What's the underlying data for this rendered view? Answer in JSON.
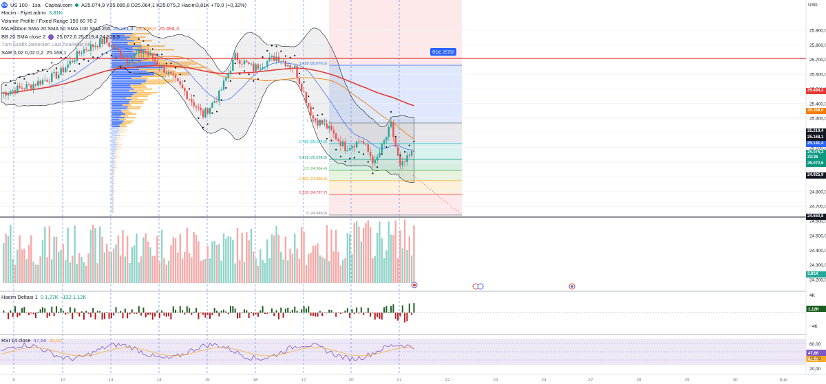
{
  "header": {
    "symbol_icon": "us-flag-icon",
    "title": "US 100 · 1sa · Capital.com",
    "ohlc": "A25.074,9 Y25.085,8 D25.064,1 K25.075,2 Hacim3,81K +79,0 (+0,32%)",
    "volume_label": "Hacim · Fiyat adımı",
    "volume_value": "3,81K",
    "vpfr_label": "Volume Profile / Fixed Range 150 60 70 2",
    "ma_label": "MA Ribbon SMA 20 SMA 50 SMA 100 SMA 200",
    "ma_values": [
      "25.141,4",
      "25.358,0",
      "25.494,3"
    ],
    "bb_label": "BB 20 SMA close 2",
    "bb_values": "25.072,6 25.219,4 24.925,9",
    "hidden_label": "Tüm Grafik Desenleri Last Available 68",
    "sar_label": "SAR 0,02 0,02 0,2",
    "sar_value": "25.168,1"
  },
  "price_axis": {
    "currency": "USD",
    "ticks": [
      "25.900,0",
      "25.800,0",
      "25.700,0",
      "25.600,0",
      "25.500,0",
      "25.400,0",
      "25.300,0",
      "25.200,0",
      "25.100,0",
      "25.000,0",
      "24.900,0",
      "24.800,0",
      "24.700,0",
      "24.600,0",
      "24.500,0",
      "24.400,0",
      "24.300,0",
      "24.200,0"
    ],
    "labels": [
      {
        "text": "25.494,3",
        "color": "#e53935"
      },
      {
        "text": "25.358,0",
        "color": "#f57c00"
      },
      {
        "text": "25.219,4",
        "color": "#131722"
      },
      {
        "text": "25.168,1",
        "color": "#131722"
      },
      {
        "text": "25.141,4",
        "color": "#2962ff"
      },
      {
        "text": "25.075,2",
        "color": "#089981"
      },
      {
        "text": "23:36",
        "color": "#089981"
      },
      {
        "text": "25.072,6",
        "color": "#089981"
      },
      {
        "text": "24.925,9",
        "color": "#131722"
      },
      {
        "text": "24.650,8",
        "color": "#131722"
      },
      {
        "text": "3,81K",
        "color": "#26a69a"
      }
    ]
  },
  "fib": {
    "levels": [
      {
        "ratio": "1,618 (25.670,0)",
        "color": "#2962ff"
      },
      {
        "ratio": "1 (25.280,0)",
        "color": "#787b86"
      },
      {
        "ratio": "0,786 (25.144,9)",
        "color": "#00bcd4"
      },
      {
        "ratio": "0,618 (25.038,8)",
        "color": "#089981"
      },
      {
        "ratio": "0,5 (24.964,4)",
        "color": "#4caf50"
      },
      {
        "ratio": "0,382 (24.889,9)",
        "color": "#ff9800"
      },
      {
        "ratio": "0,236 (24.797,7)",
        "color": "#f23645"
      },
      {
        "ratio": "0 (24.648,9)",
        "color": "#787b86"
      }
    ],
    "target_label": "ROC 25750"
  },
  "volume_delta": {
    "label": "Hacim Deltası 1",
    "values": "0  1,27K  −132  1,12K",
    "axis": [
      "4K",
      "−4K"
    ],
    "last": "1,12K"
  },
  "rsi": {
    "label": "RSI 14 close",
    "values": [
      "47,66",
      "42,02"
    ],
    "axis": [
      "60,00",
      "40,00",
      "20,00"
    ],
    "last": [
      "47,66",
      "42,02"
    ]
  },
  "time_axis": {
    "labels": [
      "9",
      "10",
      "13",
      "14",
      "15",
      "16",
      "17",
      "20",
      "21",
      "22",
      "23",
      "24",
      "27",
      "28",
      "29",
      "30",
      "Şub"
    ]
  },
  "colors": {
    "up": "#26a69a",
    "down": "#ef5350",
    "sma20": "#2962ff",
    "sma50": "#f57c00",
    "sma200": "#e53935",
    "rsi": "#7e57c2"
  }
}
